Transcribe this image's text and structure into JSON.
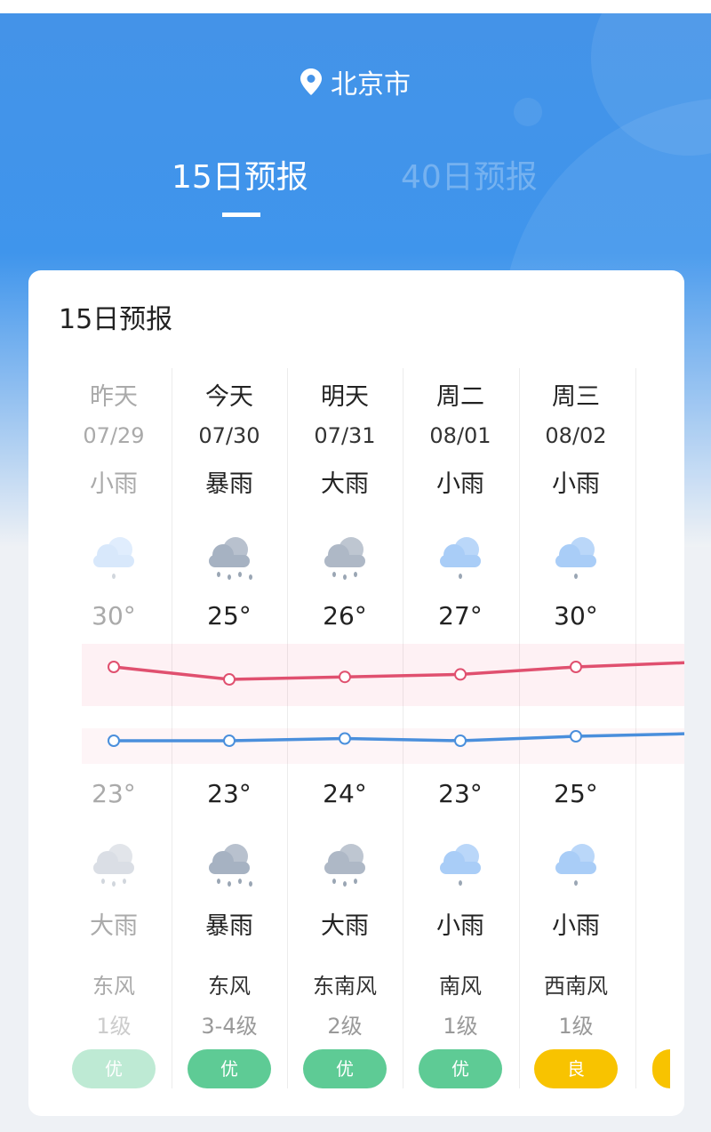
{
  "location": {
    "city": "北京市",
    "icon": "location-pin-icon"
  },
  "tabs": [
    {
      "label": "15日预报",
      "active": true
    },
    {
      "label": "40日预报",
      "active": false
    }
  ],
  "card": {
    "title": "15日预报"
  },
  "days": [
    {
      "day": "昨天",
      "date": "07/29",
      "day_cond": "小雨",
      "day_icon": "light-rain-icon",
      "high": "30°",
      "low": "23°",
      "night_cond": "大雨",
      "night_icon": "heavy-rain-icon",
      "wind": "东风",
      "wind_level": "1级",
      "aqi": "优",
      "aqi_color": "#5ecb95",
      "past": true
    },
    {
      "day": "今天",
      "date": "07/30",
      "day_cond": "暴雨",
      "day_icon": "rainstorm-icon",
      "high": "25°",
      "low": "23°",
      "night_cond": "暴雨",
      "night_icon": "rainstorm-icon",
      "wind": "东风",
      "wind_level": "3-4级",
      "aqi": "优",
      "aqi_color": "#5ecb95"
    },
    {
      "day": "明天",
      "date": "07/31",
      "day_cond": "大雨",
      "day_icon": "heavy-rain-icon",
      "high": "26°",
      "low": "24°",
      "night_cond": "大雨",
      "night_icon": "heavy-rain-icon",
      "wind": "东南风",
      "wind_level": "2级",
      "aqi": "优",
      "aqi_color": "#5ecb95"
    },
    {
      "day": "周二",
      "date": "08/01",
      "day_cond": "小雨",
      "day_icon": "light-rain-icon",
      "high": "27°",
      "low": "23°",
      "night_cond": "小雨",
      "night_icon": "light-rain-icon",
      "wind": "南风",
      "wind_level": "1级",
      "aqi": "优",
      "aqi_color": "#5ecb95"
    },
    {
      "day": "周三",
      "date": "08/02",
      "day_cond": "小雨",
      "day_icon": "light-rain-icon",
      "high": "30°",
      "low": "25°",
      "night_cond": "小雨",
      "night_icon": "light-rain-icon",
      "wind": "西南风",
      "wind_level": "1级",
      "aqi": "良",
      "aqi_color": "#f8c300"
    }
  ],
  "chart_data": {
    "type": "line",
    "categories": [
      "07/29",
      "07/30",
      "07/31",
      "08/01",
      "08/02"
    ],
    "series": [
      {
        "values": [
          30,
          25,
          26,
          27,
          30
        ],
        "color": "#e0506f"
      },
      {
        "values": [
          23,
          23,
          24,
          23,
          25
        ],
        "color": "#4a8fdc"
      }
    ]
  }
}
